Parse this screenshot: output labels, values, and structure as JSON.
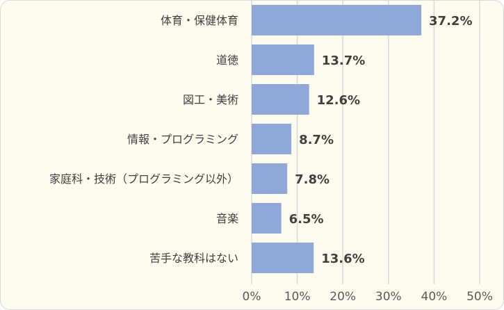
{
  "chart_data": {
    "type": "bar",
    "orientation": "horizontal",
    "categories": [
      "体育・保健体育",
      "道徳",
      "図工・美術",
      "情報・プログラミング",
      "家庭科・技術（プログラミング以外）",
      "音楽",
      "苦手な教科はない"
    ],
    "values": [
      37.2,
      13.7,
      12.6,
      8.7,
      7.8,
      6.5,
      13.6
    ],
    "value_labels": [
      "37.2%",
      "13.7%",
      "12.6%",
      "8.7%",
      "7.8%",
      "6.5%",
      "13.6%"
    ],
    "x_ticks": [
      "0%",
      "10%",
      "20%",
      "30%",
      "40%",
      "50%"
    ],
    "xlim": [
      0,
      50
    ],
    "grid": "vertical",
    "legend": "none",
    "colors": {
      "bar": "#8ea9d9",
      "background": "#fcfbee",
      "grid": "#d9d9d9",
      "text": "#404040"
    }
  }
}
